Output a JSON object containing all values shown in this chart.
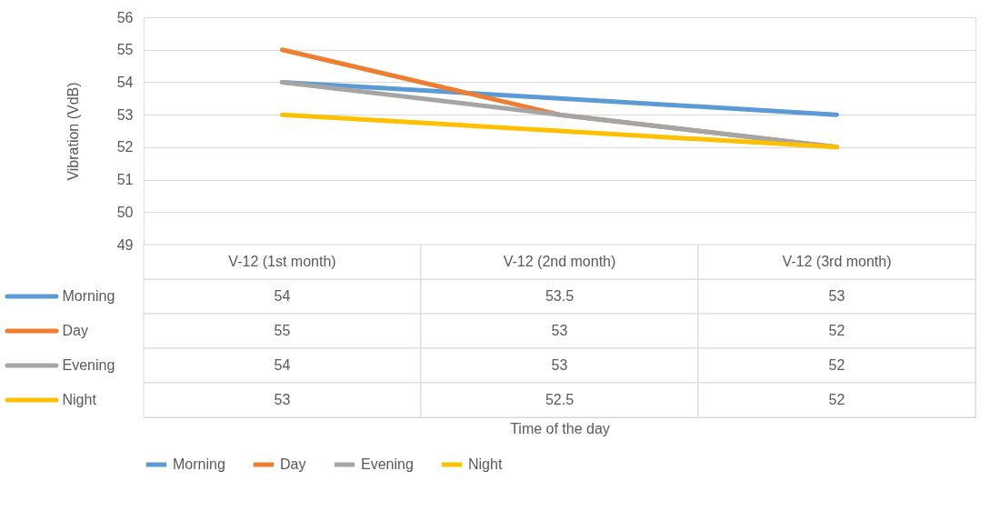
{
  "chart_data": {
    "type": "line",
    "annotations": [
      "Time of the day"
    ],
    "ylabel": "Vibration (VdB)",
    "categories": [
      "V-12 (1st month)",
      "V-12 (2nd month)",
      "V-12 (3rd month)"
    ],
    "series": [
      {
        "name": "Morning",
        "color": "#5b9bd5",
        "values": [
          54,
          53.5,
          53
        ]
      },
      {
        "name": "Day",
        "color": "#ed7d31",
        "values": [
          55,
          53,
          52
        ]
      },
      {
        "name": "Evening",
        "color": "#a5a5a5",
        "values": [
          54,
          53,
          52
        ]
      },
      {
        "name": "Night",
        "color": "#ffc000",
        "values": [
          53,
          52.5,
          52
        ]
      }
    ],
    "ylim": [
      49,
      56
    ],
    "yticks": [
      49,
      50,
      51,
      52,
      53,
      54,
      55,
      56
    ],
    "grid": "y",
    "legend": "bottom",
    "data_labels": true
  }
}
